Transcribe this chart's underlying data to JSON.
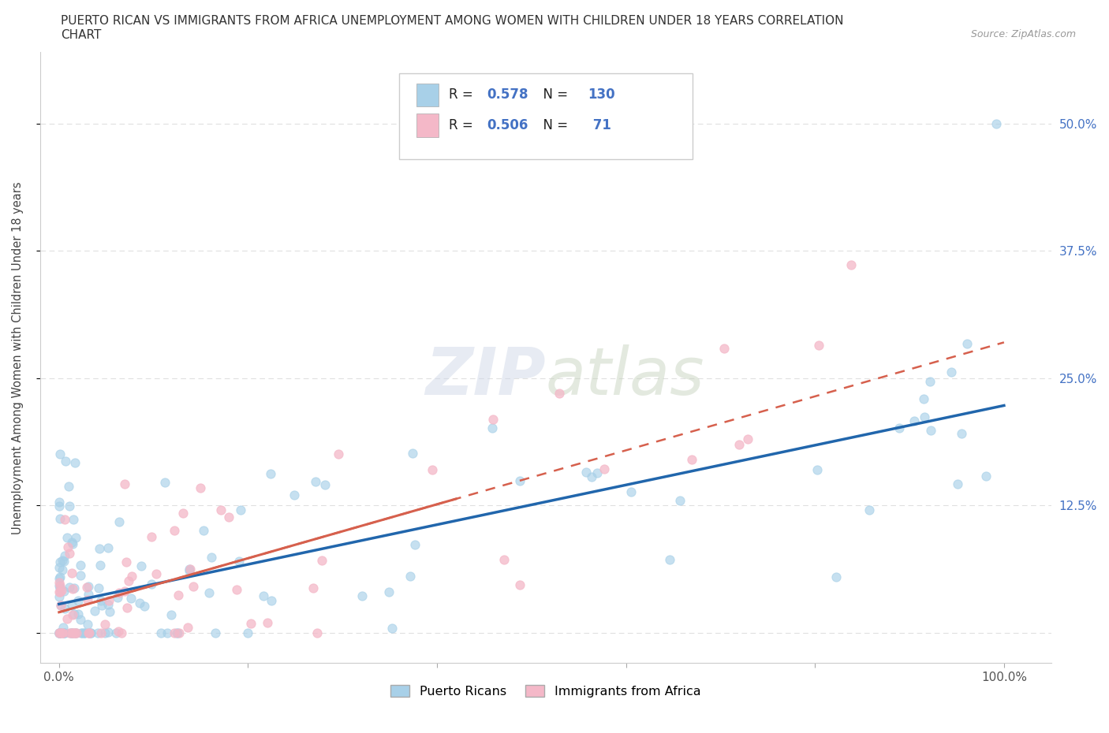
{
  "title_line1": "PUERTO RICAN VS IMMIGRANTS FROM AFRICA UNEMPLOYMENT AMONG WOMEN WITH CHILDREN UNDER 18 YEARS CORRELATION",
  "title_line2": "CHART",
  "source": "Source: ZipAtlas.com",
  "ylabel": "Unemployment Among Women with Children Under 18 years",
  "x_ticks": [
    0.0,
    0.2,
    0.4,
    0.6,
    0.8,
    1.0
  ],
  "x_tick_labels": [
    "0.0%",
    "",
    "",
    "",
    "",
    "100.0%"
  ],
  "y_tick_labels": [
    "",
    "12.5%",
    "25.0%",
    "37.5%",
    "50.0%"
  ],
  "y_ticks": [
    0.0,
    0.125,
    0.25,
    0.375,
    0.5
  ],
  "xlim": [
    -0.02,
    1.05
  ],
  "ylim": [
    -0.03,
    0.57
  ],
  "R_blue": 0.578,
  "N_blue": 130,
  "R_pink": 0.506,
  "N_pink": 71,
  "blue_color": "#a8d0e8",
  "pink_color": "#f4b8c8",
  "blue_line_color": "#2166ac",
  "pink_line_color": "#d6604d",
  "legend_label_blue": "Puerto Ricans",
  "legend_label_pink": "Immigrants from Africa",
  "watermark": "ZIPatlas",
  "background_color": "#ffffff",
  "grid_color": "#e0e0e0",
  "blue_slope": 0.195,
  "blue_intercept": 0.028,
  "pink_slope": 0.265,
  "pink_intercept": 0.02
}
